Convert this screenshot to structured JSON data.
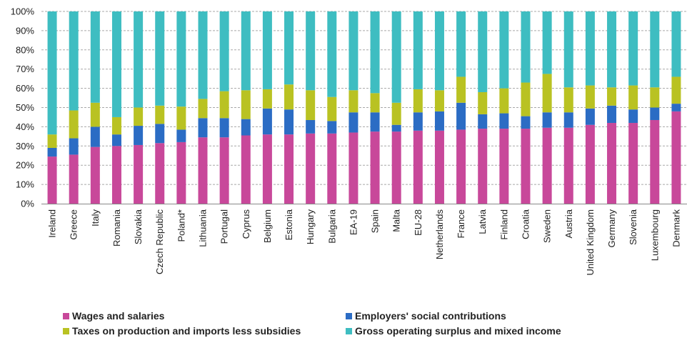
{
  "chart_data": {
    "type": "bar",
    "stacked": true,
    "categories": [
      "Ireland",
      "Greece",
      "Italy",
      "Romania",
      "Slovakia",
      "Czech Republic",
      "Poland*",
      "Lithuania",
      "Portugal",
      "Cyprus",
      "Belgium",
      "Estonia",
      "Hungary",
      "Bulgaria",
      "EA-19",
      "Spain",
      "Malta",
      "EU-28",
      "Netherlands",
      "France",
      "Latvia",
      "Finland",
      "Croatia",
      "Sweden",
      "Austria",
      "United Kingdom",
      "Germany",
      "Slovenia",
      "Luxembourg",
      "Denmark"
    ],
    "series": [
      {
        "name": "Wages and salaries",
        "color": "#c8489a",
        "values": [
          24.5,
          25.5,
          29.5,
          30,
          30.5,
          31.5,
          32,
          34.5,
          34.5,
          35.5,
          36,
          36,
          36.5,
          36.5,
          37,
          37.5,
          37.5,
          38,
          38,
          38.5,
          39,
          39,
          39,
          39.5,
          39.5,
          41,
          42,
          42,
          43.5,
          48
        ]
      },
      {
        "name": "Employers' social contributions",
        "color": "#2b6cc4",
        "values": [
          4.5,
          8.5,
          10.5,
          6,
          10,
          10,
          6.5,
          10,
          10,
          8.5,
          13.5,
          13,
          7,
          6.5,
          10.5,
          10,
          3.5,
          9.5,
          10,
          14,
          7.5,
          8,
          6.5,
          8,
          8,
          8.5,
          9,
          7,
          6.5,
          4
        ]
      },
      {
        "name": "Taxes on production and imports less subsidies",
        "color": "#b9c222",
        "values": [
          7,
          14.5,
          12.5,
          9,
          9.5,
          9.5,
          12,
          10,
          14,
          15,
          10,
          13,
          15.5,
          12.5,
          11.5,
          10,
          11.5,
          12,
          11,
          13.5,
          11.5,
          13,
          17.5,
          20,
          13,
          12,
          9.5,
          12.5,
          10.5,
          14
        ]
      },
      {
        "name": "Gross operating surplus and mixed income",
        "color": "#3ebdc1",
        "values": [
          64,
          51.5,
          47.5,
          55,
          50,
          49,
          49.5,
          45.5,
          41.5,
          41,
          40.5,
          38,
          41,
          44.5,
          41,
          42.5,
          47.5,
          40.5,
          41,
          34,
          42,
          40,
          37,
          32.5,
          39.5,
          38.5,
          39.5,
          38.5,
          39.5,
          34
        ]
      }
    ],
    "y_ticks": [
      "0%",
      "10%",
      "20%",
      "30%",
      "40%",
      "50%",
      "60%",
      "70%",
      "80%",
      "90%",
      "100%"
    ],
    "ylim": [
      0,
      100
    ],
    "grid": true,
    "legend_position": "bottom"
  }
}
